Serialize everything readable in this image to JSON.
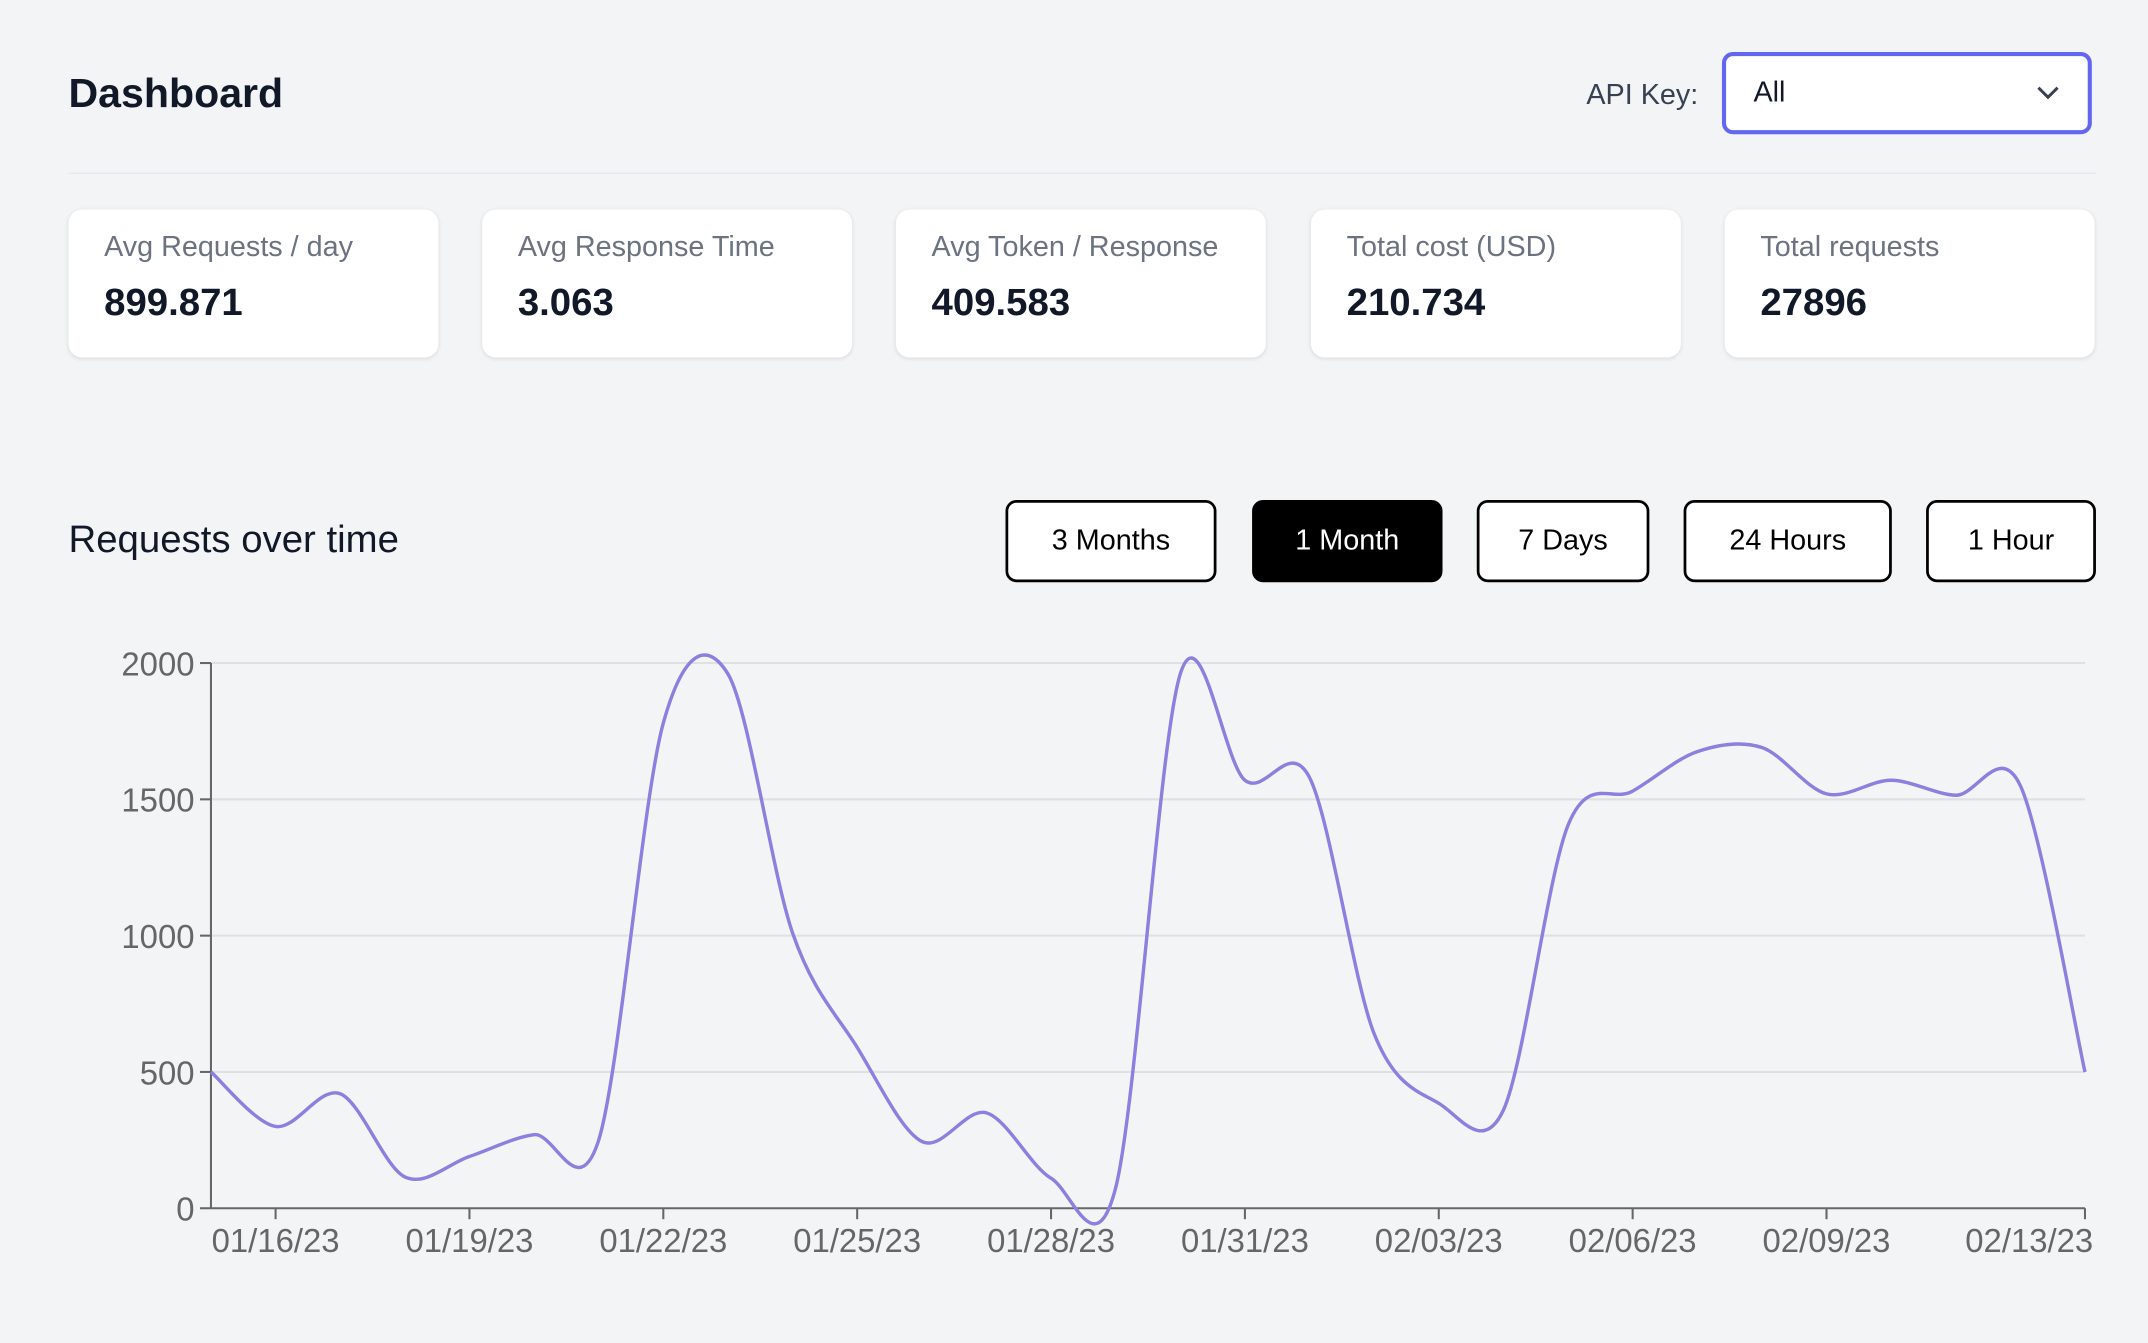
{
  "header": {
    "title": "Dashboard",
    "api_key_label": "API Key:",
    "api_key_value": "All"
  },
  "stats": [
    {
      "label": "Avg Requests / day",
      "value": "899.871"
    },
    {
      "label": "Avg Response Time",
      "value": "3.063"
    },
    {
      "label": "Avg Token / Response",
      "value": "409.583"
    },
    {
      "label": "Total cost (USD)",
      "value": "210.734"
    },
    {
      "label": "Total requests",
      "value": "27896"
    }
  ],
  "chart_section": {
    "title": "Requests over time",
    "ranges": [
      {
        "label": "3 Months",
        "active": false
      },
      {
        "label": "1 Month",
        "active": true
      },
      {
        "label": "7 Days",
        "active": false
      },
      {
        "label": "24 Hours",
        "active": false
      },
      {
        "label": "1 Hour",
        "active": false
      }
    ]
  },
  "colors": {
    "accent": "#6366f1",
    "line": "#8b7fe0",
    "active_button": "#000000"
  },
  "chart_data": {
    "type": "line",
    "x": [
      "01/15/23",
      "01/16/23",
      "01/17/23",
      "01/18/23",
      "01/19/23",
      "01/20/23",
      "01/21/23",
      "01/22/23",
      "01/23/23",
      "01/24/23",
      "01/25/23",
      "01/26/23",
      "01/27/23",
      "01/28/23",
      "01/29/23",
      "01/30/23",
      "01/31/23",
      "02/01/23",
      "02/02/23",
      "02/03/23",
      "02/04/23",
      "02/05/23",
      "02/06/23",
      "02/07/23",
      "02/08/23",
      "02/09/23",
      "02/10/23",
      "02/11/23",
      "02/12/23",
      "02/13/23"
    ],
    "values": [
      500,
      300,
      420,
      115,
      190,
      270,
      250,
      1780,
      1960,
      1010,
      590,
      245,
      350,
      110,
      75,
      1960,
      1570,
      1580,
      640,
      385,
      360,
      1405,
      1530,
      1675,
      1690,
      1520,
      1570,
      1515,
      1550,
      500
    ],
    "xticks": [
      "01/16/23",
      "01/19/23",
      "01/22/23",
      "01/25/23",
      "01/28/23",
      "01/31/23",
      "02/03/23",
      "02/06/23",
      "02/09/23",
      "02/13/23"
    ],
    "yticks": [
      0,
      500,
      1000,
      1500,
      2000
    ],
    "ylim": [
      0,
      2000
    ],
    "grid": true,
    "curve": "smooth"
  }
}
